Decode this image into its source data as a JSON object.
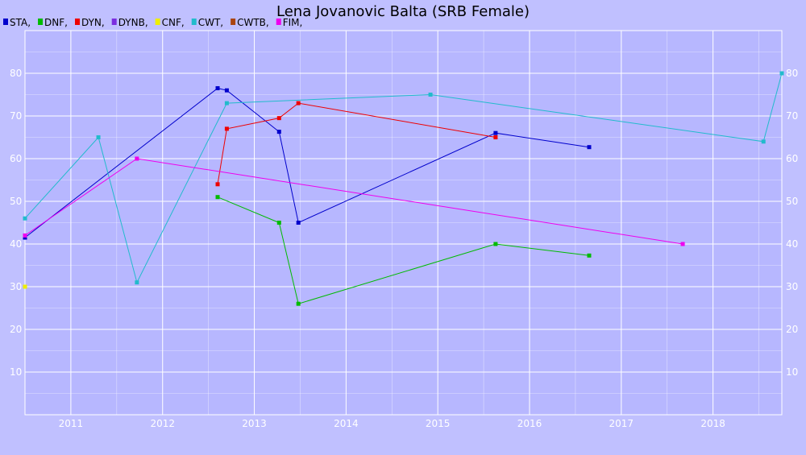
{
  "chart_data": {
    "type": "line",
    "title": "Lena Jovanovic Balta (SRB Female)",
    "xlabel": "",
    "ylabel": "",
    "x_ticks": [
      "2011",
      "2012",
      "2013",
      "2014",
      "2015",
      "2016",
      "2017",
      "2018"
    ],
    "y_ticks": [
      "10",
      "20",
      "30",
      "40",
      "50",
      "60",
      "70",
      "80"
    ],
    "xlim": [
      2010.5,
      2018.75
    ],
    "ylim": [
      0,
      90
    ],
    "grid": true,
    "legend_placement": "top-left",
    "series": [
      {
        "name": "STA",
        "color": "#0000cc",
        "points": [
          [
            2010.5,
            41.5
          ],
          [
            2012.6,
            76.5
          ],
          [
            2012.7,
            76
          ],
          [
            2013.27,
            66.3
          ],
          [
            2013.48,
            45
          ],
          [
            2015.63,
            66
          ],
          [
            2016.65,
            62.7
          ]
        ]
      },
      {
        "name": "DNF",
        "color": "#00bb00",
        "points": [
          [
            2012.6,
            51
          ],
          [
            2013.27,
            45
          ],
          [
            2013.48,
            26
          ],
          [
            2015.63,
            40
          ],
          [
            2016.65,
            37.3
          ]
        ]
      },
      {
        "name": "DYN",
        "color": "#ee0000",
        "points": [
          [
            2012.6,
            54
          ],
          [
            2012.7,
            67
          ],
          [
            2013.27,
            69.5
          ],
          [
            2013.48,
            73
          ],
          [
            2015.63,
            65
          ]
        ]
      },
      {
        "name": "DYNB",
        "color": "#7b2ee0",
        "points": []
      },
      {
        "name": "CNF",
        "color": "#eeee00",
        "points": [
          [
            2010.5,
            30
          ]
        ]
      },
      {
        "name": "CWT",
        "color": "#22bbcc",
        "points": [
          [
            2010.5,
            46
          ],
          [
            2011.3,
            65
          ],
          [
            2011.72,
            31
          ],
          [
            2012.7,
            73
          ],
          [
            2014.92,
            75
          ],
          [
            2018.55,
            64
          ],
          [
            2018.75,
            80
          ]
        ]
      },
      {
        "name": "CWTB",
        "color": "#aa4411",
        "points": []
      },
      {
        "name": "FIM",
        "color": "#ee00ee",
        "points": [
          [
            2010.5,
            42
          ],
          [
            2011.72,
            60
          ],
          [
            2017.67,
            40
          ]
        ]
      }
    ]
  }
}
